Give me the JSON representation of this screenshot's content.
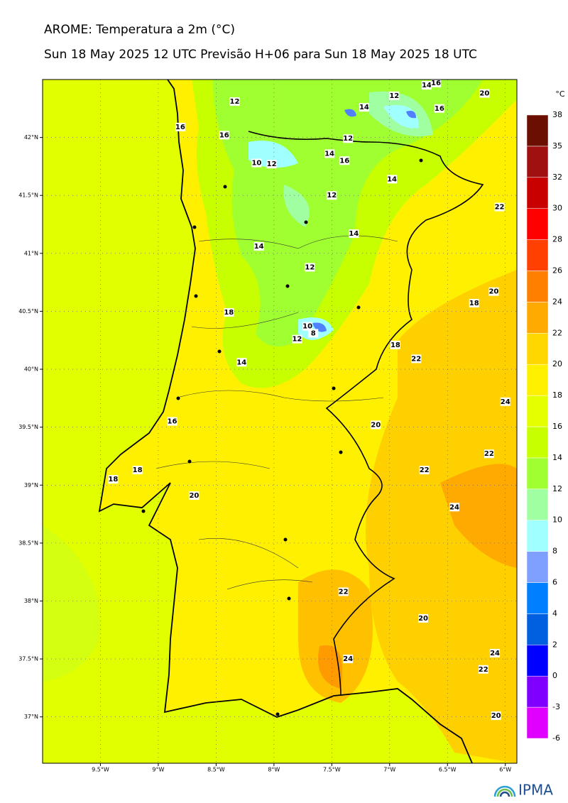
{
  "map": {
    "title": "AROME: Temperatura a 2m (°C)",
    "subtitle": "Sun 18 May 2025 12 UTC Previsão H+06 para Sun 18 May 2025 18 UTC",
    "xlim": [
      -10,
      -5.9
    ],
    "ylim": [
      36.6,
      42.5
    ],
    "xticks": [
      {
        "value": -9.5,
        "label": "9.5°W"
      },
      {
        "value": -9,
        "label": "9°W"
      },
      {
        "value": -8.5,
        "label": "8.5°W"
      },
      {
        "value": -8,
        "label": "8°W"
      },
      {
        "value": -7.5,
        "label": "7.5°W"
      },
      {
        "value": -7,
        "label": "7°W"
      },
      {
        "value": -6.5,
        "label": "6.5°W"
      },
      {
        "value": -6,
        "label": "6°W"
      }
    ],
    "yticks": [
      {
        "value": 42,
        "label": "42°N"
      },
      {
        "value": 41.5,
        "label": "41.5°N"
      },
      {
        "value": 41,
        "label": "41°N"
      },
      {
        "value": 40.5,
        "label": "40.5°N"
      },
      {
        "value": 40,
        "label": "40°N"
      },
      {
        "value": 39.5,
        "label": "39.5°N"
      },
      {
        "value": 39,
        "label": "39°N"
      },
      {
        "value": 38.5,
        "label": "38.5°N"
      },
      {
        "value": 38,
        "label": "38°N"
      },
      {
        "value": 37.5,
        "label": "37.5°N"
      },
      {
        "value": 37,
        "label": "37°N"
      }
    ],
    "grid": true,
    "contour_labels": [
      {
        "text": "12",
        "lon": -8.34,
        "lat": 42.31
      },
      {
        "text": "14",
        "lon": -6.68,
        "lat": 42.45
      },
      {
        "text": "16",
        "lon": -6.6,
        "lat": 42.47
      },
      {
        "text": "12",
        "lon": -6.96,
        "lat": 42.36
      },
      {
        "text": "20",
        "lon": -6.18,
        "lat": 42.38
      },
      {
        "text": "14",
        "lon": -7.22,
        "lat": 42.26
      },
      {
        "text": "16",
        "lon": -6.57,
        "lat": 42.25
      },
      {
        "text": "16",
        "lon": -8.81,
        "lat": 42.09
      },
      {
        "text": "16",
        "lon": -8.43,
        "lat": 42.02
      },
      {
        "text": "12",
        "lon": -7.36,
        "lat": 41.99
      },
      {
        "text": "14",
        "lon": -7.52,
        "lat": 41.86
      },
      {
        "text": "16",
        "lon": -7.39,
        "lat": 41.8
      },
      {
        "text": "10",
        "lon": -8.15,
        "lat": 41.78
      },
      {
        "text": "12",
        "lon": -8.02,
        "lat": 41.77
      },
      {
        "text": "14",
        "lon": -6.98,
        "lat": 41.64
      },
      {
        "text": "12",
        "lon": -7.5,
        "lat": 41.5
      },
      {
        "text": "22",
        "lon": -6.05,
        "lat": 41.4
      },
      {
        "text": "14",
        "lon": -7.31,
        "lat": 41.17
      },
      {
        "text": "14",
        "lon": -8.13,
        "lat": 41.06
      },
      {
        "text": "12",
        "lon": -7.69,
        "lat": 40.88
      },
      {
        "text": "20",
        "lon": -6.1,
        "lat": 40.67
      },
      {
        "text": "18",
        "lon": -6.27,
        "lat": 40.57
      },
      {
        "text": "18",
        "lon": -8.39,
        "lat": 40.49
      },
      {
        "text": "10",
        "lon": -7.71,
        "lat": 40.37
      },
      {
        "text": "8",
        "lon": -7.66,
        "lat": 40.31
      },
      {
        "text": "12",
        "lon": -7.8,
        "lat": 40.26
      },
      {
        "text": "18",
        "lon": -6.95,
        "lat": 40.21
      },
      {
        "text": "22",
        "lon": -6.77,
        "lat": 40.09
      },
      {
        "text": "14",
        "lon": -8.28,
        "lat": 40.06
      },
      {
        "text": "24",
        "lon": -6.0,
        "lat": 39.72
      },
      {
        "text": "20",
        "lon": -7.12,
        "lat": 39.52
      },
      {
        "text": "16",
        "lon": -8.88,
        "lat": 39.55
      },
      {
        "text": "22",
        "lon": -6.14,
        "lat": 39.27
      },
      {
        "text": "22",
        "lon": -6.7,
        "lat": 39.13
      },
      {
        "text": "18",
        "lon": -9.18,
        "lat": 39.13
      },
      {
        "text": "18",
        "lon": -9.39,
        "lat": 39.05
      },
      {
        "text": "20",
        "lon": -8.69,
        "lat": 38.91
      },
      {
        "text": "24",
        "lon": -6.44,
        "lat": 38.81
      },
      {
        "text": "22",
        "lon": -7.4,
        "lat": 38.08
      },
      {
        "text": "20",
        "lon": -6.71,
        "lat": 37.85
      },
      {
        "text": "24",
        "lon": -6.09,
        "lat": 37.55
      },
      {
        "text": "24",
        "lon": -7.36,
        "lat": 37.5
      },
      {
        "text": "22",
        "lon": -6.19,
        "lat": 37.41
      },
      {
        "text": "20",
        "lon": -6.08,
        "lat": 37.01
      }
    ],
    "colorbar": {
      "unit": "°C",
      "levels": [
        -6,
        -3,
        0,
        2,
        4,
        6,
        8,
        10,
        12,
        14,
        16,
        18,
        20,
        22,
        24,
        26,
        28,
        30,
        32,
        35,
        38
      ],
      "colors": [
        "#e000ff",
        "#8000ff",
        "#0000ff",
        "#0060e0",
        "#0080ff",
        "#80a0ff",
        "#a0ffff",
        "#a0ffa0",
        "#a0ff30",
        "#c8ff00",
        "#e6ff00",
        "#fff000",
        "#ffd700",
        "#ffaa00",
        "#ff8000",
        "#ff4000",
        "#ff0000",
        "#c80000",
        "#a01010",
        "#6b1000"
      ]
    },
    "logo": "IPMA"
  }
}
